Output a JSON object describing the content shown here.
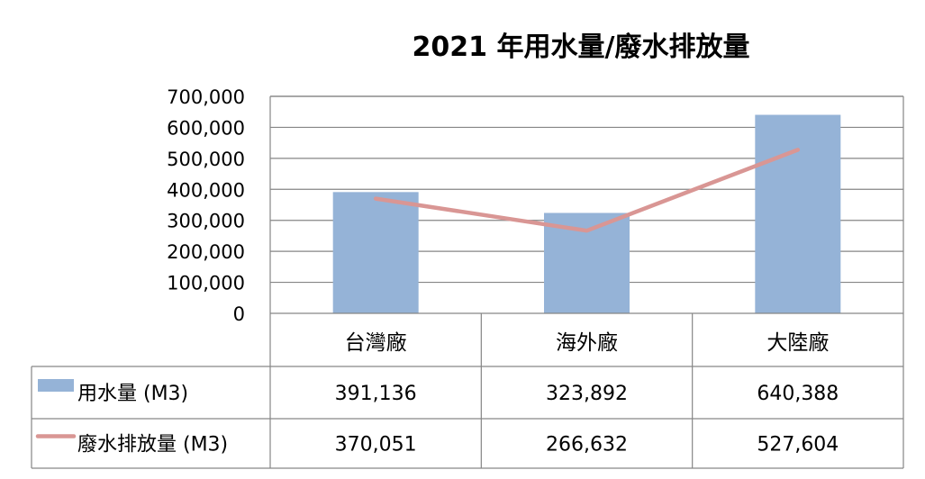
{
  "chart_data": {
    "type": "bar",
    "title": "2021 年用水量/廢水排放量",
    "categories": [
      "台灣廠",
      "海外廠",
      "大陸廠"
    ],
    "ylim": [
      0,
      700000
    ],
    "y_ticks": [
      "0",
      "100,000",
      "200,000",
      "300,000",
      "400,000",
      "500,000",
      "600,000",
      "700,000"
    ],
    "grid": true,
    "legend_placement": "data-table",
    "series": [
      {
        "name": "用水量 (M3)",
        "type": "bar",
        "color": "#95b3d7",
        "values": [
          391136,
          323892,
          640388
        ],
        "labels": [
          "391,136",
          "323,892",
          "640,388"
        ]
      },
      {
        "name": "廢水排放量 (M3)",
        "type": "line",
        "color": "#d99694",
        "values": [
          370051,
          266632,
          527604
        ],
        "labels": [
          "370,051",
          "266,632",
          "527,604"
        ]
      }
    ]
  }
}
